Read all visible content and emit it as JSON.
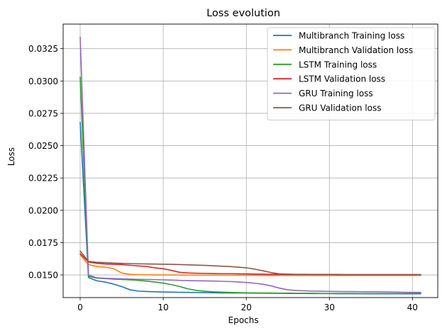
{
  "chart_data": {
    "type": "line",
    "title": "Loss evolution",
    "xlabel": "Epochs",
    "ylabel": "Loss",
    "xlim": [
      -2.05,
      43.05
    ],
    "ylim": [
      0.01325,
      0.0344
    ],
    "xticks": [
      0,
      10,
      20,
      30,
      40
    ],
    "xtick_labels": [
      "0",
      "10",
      "20",
      "30",
      "40"
    ],
    "yticks": [
      0.015,
      0.0175,
      0.02,
      0.0225,
      0.025,
      0.0275,
      0.03,
      0.0325
    ],
    "ytick_labels": [
      "0.0150",
      "0.0175",
      "0.0200",
      "0.0225",
      "0.0250",
      "0.0275",
      "0.0300",
      "0.0325"
    ],
    "grid": true,
    "legend_position": "top-right",
    "x": [
      0,
      1,
      2,
      3,
      4,
      5,
      6,
      7,
      8,
      9,
      10,
      11,
      12,
      13,
      14,
      15,
      16,
      17,
      18,
      19,
      20,
      21,
      22,
      23,
      24,
      25,
      26,
      27,
      28,
      29,
      30,
      31,
      32,
      33,
      34,
      35,
      36,
      37,
      38,
      39,
      40,
      41
    ],
    "series": [
      {
        "name": "Multibranch Training loss",
        "color": "#1f77b4",
        "values": [
          0.0268,
          0.0148,
          0.01455,
          0.01445,
          0.0143,
          0.0141,
          0.01385,
          0.01375,
          0.01372,
          0.0137,
          0.01368,
          0.01367,
          0.01366,
          0.01365,
          0.01364,
          0.01363,
          0.01362,
          0.01361,
          0.01361,
          0.0136,
          0.0136,
          0.01359,
          0.01359,
          0.01358,
          0.01358,
          0.01357,
          0.01357,
          0.01357,
          0.01356,
          0.01356,
          0.01356,
          0.01355,
          0.01355,
          0.01355,
          0.01355,
          0.01354,
          0.01354,
          0.01354,
          0.01354,
          0.01354,
          0.01354,
          0.01354
        ]
      },
      {
        "name": "Multibranch Validation loss",
        "color": "#ff7f0e",
        "values": [
          0.01655,
          0.0158,
          0.01565,
          0.0156,
          0.0155,
          0.01515,
          0.01505,
          0.01502,
          0.01501,
          0.015,
          0.015,
          0.015,
          0.01499,
          0.01499,
          0.01498,
          0.01498,
          0.01498,
          0.01497,
          0.01497,
          0.01497,
          0.01497,
          0.01497,
          0.01496,
          0.01496,
          0.01496,
          0.01496,
          0.01496,
          0.01496,
          0.01496,
          0.01496,
          0.01496,
          0.01496,
          0.01496,
          0.01496,
          0.01496,
          0.01496,
          0.01496,
          0.01496,
          0.01496,
          0.01496,
          0.01496,
          0.01496
        ]
      },
      {
        "name": "LSTM Training loss",
        "color": "#2ca02c",
        "values": [
          0.0303,
          0.0149,
          0.01475,
          0.01472,
          0.01468,
          0.01465,
          0.01462,
          0.01458,
          0.01452,
          0.01445,
          0.01437,
          0.01425,
          0.0141,
          0.01392,
          0.0138,
          0.01374,
          0.0137,
          0.01367,
          0.01365,
          0.01363,
          0.01362,
          0.01361,
          0.0136,
          0.0136,
          0.01359,
          0.01359,
          0.01358,
          0.01358,
          0.01358,
          0.01357,
          0.01357,
          0.01357,
          0.01357,
          0.01357,
          0.01356,
          0.01356,
          0.01356,
          0.01356,
          0.01356,
          0.01356,
          0.01356,
          0.01356
        ]
      },
      {
        "name": "LSTM Validation loss",
        "color": "#d62728",
        "values": [
          0.01665,
          0.016,
          0.0159,
          0.01585,
          0.01582,
          0.0158,
          0.01575,
          0.0157,
          0.01565,
          0.01555,
          0.01548,
          0.01535,
          0.0152,
          0.01515,
          0.01513,
          0.01512,
          0.01511,
          0.0151,
          0.0151,
          0.01509,
          0.01508,
          0.01507,
          0.01506,
          0.01505,
          0.01505,
          0.01504,
          0.01504,
          0.01503,
          0.01503,
          0.01503,
          0.01503,
          0.01502,
          0.01502,
          0.01502,
          0.01502,
          0.01502,
          0.01502,
          0.01502,
          0.01502,
          0.01502,
          0.01502,
          0.01502
        ]
      },
      {
        "name": "GRU Training loss",
        "color": "#9467bd",
        "values": [
          0.0334,
          0.015,
          0.01478,
          0.01474,
          0.01472,
          0.0147,
          0.01468,
          0.01466,
          0.01465,
          0.01464,
          0.01462,
          0.0146,
          0.01458,
          0.01456,
          0.01455,
          0.01454,
          0.01453,
          0.01451,
          0.01449,
          0.01446,
          0.01442,
          0.01436,
          0.01428,
          0.01415,
          0.01398,
          0.01385,
          0.0138,
          0.01377,
          0.01375,
          0.01374,
          0.01373,
          0.01372,
          0.01371,
          0.01371,
          0.0137,
          0.0137,
          0.01369,
          0.01368,
          0.01367,
          0.01366,
          0.01365,
          0.01365
        ]
      },
      {
        "name": "GRU Validation loss",
        "color": "#8c564b",
        "values": [
          0.01685,
          0.01605,
          0.01598,
          0.01595,
          0.01592,
          0.0159,
          0.01588,
          0.01586,
          0.01585,
          0.01584,
          0.01583,
          0.01582,
          0.0158,
          0.01578,
          0.01576,
          0.01574,
          0.01571,
          0.01568,
          0.01565,
          0.0156,
          0.01555,
          0.01545,
          0.01532,
          0.01518,
          0.01508,
          0.01506,
          0.01505,
          0.01505,
          0.01504,
          0.01504,
          0.01504,
          0.01504,
          0.01503,
          0.01503,
          0.01503,
          0.01503,
          0.01503,
          0.01503,
          0.01503,
          0.01503,
          0.01503,
          0.01503
        ]
      }
    ]
  }
}
